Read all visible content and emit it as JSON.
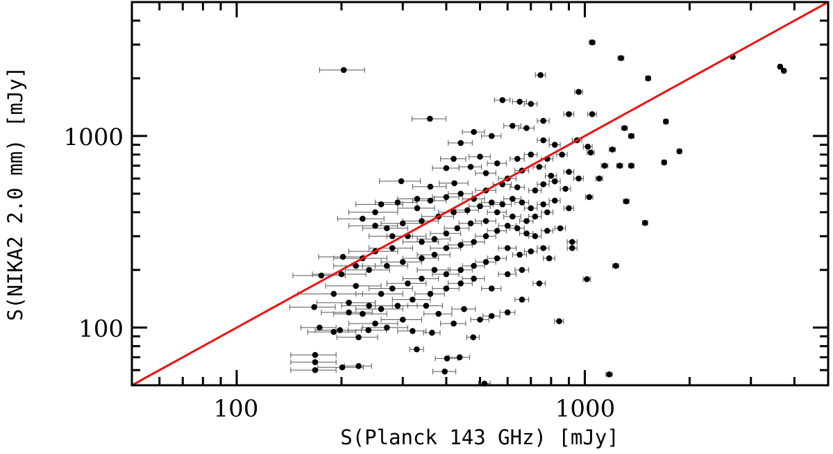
{
  "chart_data": {
    "type": "scatter",
    "xlabel": "S(Planck 143 GHz) [mJy]",
    "ylabel": "S(NIKA2 2.0 mm) [mJy]",
    "xscale": "log",
    "yscale": "log",
    "xlim": [
      50,
      5000
    ],
    "ylim": [
      50,
      5000
    ],
    "x_tick_labels": [
      "100",
      "1000"
    ],
    "y_tick_labels": [
      "100",
      "1000"
    ],
    "x_ticks": [
      100,
      1000
    ],
    "y_ticks": [
      100,
      1000
    ],
    "grid": false,
    "reference_line": {
      "type": "one-to-one",
      "color": "#ee1111"
    },
    "marker_color": "#000000",
    "errorbar_color": "#555555",
    "points": [
      [
        203,
        2210,
        30
      ],
      [
        1050,
        3080,
        20
      ],
      [
        1270,
        2550,
        25
      ],
      [
        2660,
        2590,
        30
      ],
      [
        3640,
        2300,
        40
      ],
      [
        3730,
        2190,
        40
      ],
      [
        1520,
        2000,
        25
      ],
      [
        746,
        2080,
        25
      ],
      [
        359,
        1230,
        40
      ],
      [
        1710,
        1190,
        25
      ],
      [
        1690,
        728,
        25
      ],
      [
        1870,
        832,
        25
      ],
      [
        1490,
        352,
        25
      ],
      [
        1315,
        456,
        25
      ],
      [
        1227,
        210,
        25
      ],
      [
        1014,
        179,
        25
      ],
      [
        844,
        108,
        25
      ],
      [
        1175,
        57,
        25
      ],
      [
        515,
        51,
        20
      ],
      [
        168,
        72,
        25
      ],
      [
        168,
        66,
        25
      ],
      [
        168,
        60,
        25
      ],
      [
        201,
        62,
        30
      ],
      [
        224,
        63,
        20
      ],
      [
        329,
        77,
        15
      ],
      [
        402,
        69,
        30
      ],
      [
        437,
        70,
        30
      ],
      [
        396,
        59,
        30
      ],
      [
        364,
        94,
        20
      ],
      [
        478,
        89,
        20
      ],
      [
        202,
        234,
        30
      ],
      [
        175,
        187,
        30
      ],
      [
        167,
        128,
        25
      ],
      [
        173,
        100,
        20
      ],
      [
        198,
        97,
        30
      ],
      [
        190,
        95,
        30
      ],
      [
        224,
        89,
        30
      ],
      [
        239,
        97,
        30
      ],
      [
        297,
        581,
        40
      ],
      [
        360,
        544,
        40
      ],
      [
        422,
        567,
        40
      ],
      [
        580,
        1540,
        30
      ],
      [
        650,
        1510,
        30
      ],
      [
        700,
        1470,
        30
      ],
      [
        760,
        1200,
        30
      ],
      [
        900,
        1300,
        30
      ],
      [
        1050,
        1300,
        30
      ],
      [
        960,
        1700,
        25
      ],
      [
        480,
        1050,
        35
      ],
      [
        540,
        1000,
        35
      ],
      [
        620,
        1130,
        35
      ],
      [
        680,
        1100,
        35
      ],
      [
        760,
        950,
        30
      ],
      [
        820,
        900,
        30
      ],
      [
        950,
        950,
        30
      ],
      [
        1020,
        880,
        30
      ],
      [
        1300,
        1100,
        25
      ],
      [
        1360,
        1000,
        25
      ],
      [
        1200,
        850,
        25
      ],
      [
        1260,
        700,
        25
      ],
      [
        1360,
        700,
        25
      ],
      [
        1140,
        700,
        25
      ],
      [
        1040,
        820,
        25
      ],
      [
        860,
        800,
        30
      ],
      [
        780,
        760,
        30
      ],
      [
        700,
        800,
        30
      ],
      [
        640,
        760,
        30
      ],
      [
        560,
        720,
        35
      ],
      [
        500,
        780,
        35
      ],
      [
        440,
        920,
        35
      ],
      [
        420,
        760,
        35
      ],
      [
        400,
        680,
        35
      ],
      [
        470,
        690,
        35
      ],
      [
        520,
        640,
        35
      ],
      [
        600,
        600,
        35
      ],
      [
        660,
        660,
        30
      ],
      [
        740,
        690,
        30
      ],
      [
        800,
        620,
        30
      ],
      [
        900,
        650,
        30
      ],
      [
        960,
        600,
        30
      ],
      [
        1100,
        600,
        25
      ],
      [
        1030,
        480,
        25
      ],
      [
        880,
        530,
        30
      ],
      [
        820,
        580,
        30
      ],
      [
        760,
        560,
        30
      ],
      [
        720,
        520,
        30
      ],
      [
        640,
        540,
        30
      ],
      [
        580,
        560,
        35
      ],
      [
        520,
        520,
        35
      ],
      [
        480,
        470,
        35
      ],
      [
        440,
        500,
        35
      ],
      [
        400,
        480,
        35
      ],
      [
        360,
        460,
        40
      ],
      [
        330,
        420,
        40
      ],
      [
        290,
        450,
        40
      ],
      [
        260,
        440,
        40
      ],
      [
        250,
        400,
        40
      ],
      [
        230,
        370,
        35
      ],
      [
        250,
        340,
        40
      ],
      [
        270,
        330,
        40
      ],
      [
        300,
        350,
        40
      ],
      [
        340,
        360,
        40
      ],
      [
        380,
        380,
        40
      ],
      [
        420,
        400,
        40
      ],
      [
        460,
        410,
        35
      ],
      [
        500,
        430,
        35
      ],
      [
        540,
        450,
        35
      ],
      [
        580,
        440,
        35
      ],
      [
        620,
        470,
        35
      ],
      [
        660,
        450,
        30
      ],
      [
        700,
        420,
        30
      ],
      [
        760,
        440,
        30
      ],
      [
        820,
        460,
        30
      ],
      [
        900,
        420,
        30
      ],
      [
        780,
        400,
        30
      ],
      [
        720,
        380,
        30
      ],
      [
        680,
        360,
        30
      ],
      [
        620,
        380,
        35
      ],
      [
        560,
        400,
        35
      ],
      [
        520,
        360,
        35
      ],
      [
        470,
        350,
        35
      ],
      [
        430,
        330,
        35
      ],
      [
        400,
        310,
        40
      ],
      [
        370,
        290,
        40
      ],
      [
        340,
        280,
        40
      ],
      [
        310,
        300,
        40
      ],
      [
        280,
        260,
        40
      ],
      [
        250,
        250,
        40
      ],
      [
        230,
        230,
        40
      ],
      [
        220,
        210,
        30
      ],
      [
        240,
        200,
        35
      ],
      [
        270,
        210,
        40
      ],
      [
        300,
        220,
        40
      ],
      [
        340,
        230,
        40
      ],
      [
        370,
        240,
        40
      ],
      [
        400,
        260,
        40
      ],
      [
        440,
        270,
        35
      ],
      [
        480,
        280,
        35
      ],
      [
        520,
        300,
        35
      ],
      [
        560,
        320,
        35
      ],
      [
        600,
        340,
        35
      ],
      [
        640,
        330,
        30
      ],
      [
        680,
        310,
        30
      ],
      [
        720,
        300,
        30
      ],
      [
        780,
        320,
        30
      ],
      [
        850,
        330,
        30
      ],
      [
        920,
        280,
        30
      ],
      [
        920,
        260,
        30
      ],
      [
        760,
        260,
        30
      ],
      [
        700,
        250,
        30
      ],
      [
        650,
        240,
        30
      ],
      [
        600,
        260,
        35
      ],
      [
        560,
        230,
        35
      ],
      [
        520,
        220,
        35
      ],
      [
        480,
        210,
        35
      ],
      [
        440,
        200,
        35
      ],
      [
        400,
        190,
        35
      ],
      [
        370,
        200,
        40
      ],
      [
        340,
        180,
        40
      ],
      [
        310,
        170,
        40
      ],
      [
        280,
        160,
        40
      ],
      [
        260,
        150,
        40
      ],
      [
        240,
        130,
        40
      ],
      [
        260,
        125,
        40
      ],
      [
        290,
        130,
        40
      ],
      [
        320,
        140,
        40
      ],
      [
        360,
        150,
        35
      ],
      [
        400,
        160,
        35
      ],
      [
        440,
        170,
        35
      ],
      [
        480,
        180,
        35
      ],
      [
        540,
        160,
        35
      ],
      [
        600,
        190,
        35
      ],
      [
        660,
        200,
        30
      ],
      [
        740,
        170,
        30
      ],
      [
        790,
        230,
        30
      ],
      [
        660,
        140,
        30
      ],
      [
        600,
        120,
        30
      ],
      [
        540,
        115,
        30
      ],
      [
        500,
        110,
        30
      ],
      [
        450,
        125,
        35
      ],
      [
        420,
        105,
        35
      ],
      [
        380,
        118,
        35
      ],
      [
        350,
        130,
        40
      ],
      [
        300,
        110,
        40
      ],
      [
        270,
        100,
        40
      ],
      [
        250,
        105,
        40
      ],
      [
        230,
        118,
        40
      ],
      [
        210,
        135,
        40
      ],
      [
        190,
        150,
        40
      ],
      [
        210,
        120,
        35
      ],
      [
        200,
        190,
        35
      ],
      [
        220,
        165,
        40
      ],
      [
        320,
        96,
        30
      ],
      [
        330,
        470,
        40
      ],
      [
        280,
        300,
        40
      ]
    ]
  }
}
